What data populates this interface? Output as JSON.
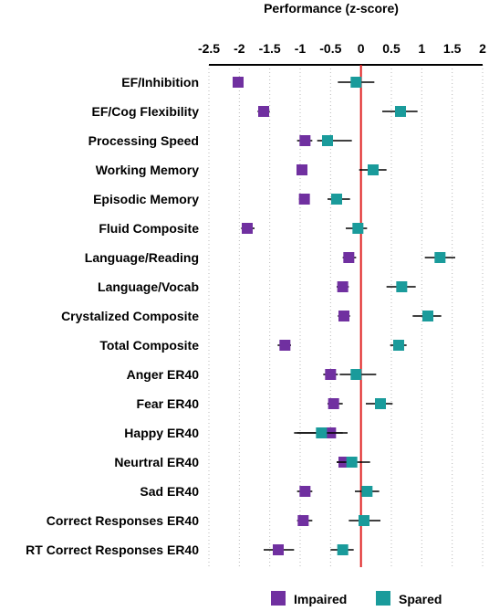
{
  "chart_data": {
    "type": "scatter",
    "title": "Performance (z-score)",
    "xlim": [
      -2.5,
      2
    ],
    "x_ticks": [
      "-2.5",
      "-2",
      "-1.5",
      "-1",
      "-0.5",
      "0",
      "0.5",
      "1",
      "1.5",
      "2"
    ],
    "grid": "vertical dotted",
    "reference_line_x": 0,
    "reference_line_color": "#e02020",
    "legend_position": "bottom-right",
    "categories": [
      "EF/Inhibition",
      "EF/Cog Flexibility",
      "Processing Speed",
      "Working Memory",
      "Episodic Memory",
      "Fluid Composite",
      "Language/Reading",
      "Language/Vocab",
      "Crystalized Composite",
      "Total Composite",
      "Anger ER40",
      "Fear ER40",
      "Happy ER40",
      "Neurtral ER40",
      "Sad ER40",
      "Correct Responses ER40",
      "RT Correct Responses ER40"
    ],
    "series": [
      {
        "name": "Impaired",
        "color": "#7030a0",
        "values": [
          -2.02,
          -1.6,
          -0.92,
          -0.97,
          -0.93,
          -1.87,
          -0.2,
          -0.3,
          -0.28,
          -1.25,
          -0.5,
          -0.45,
          -0.5,
          -0.28,
          -0.92,
          -0.95,
          -1.36
        ],
        "err_low": [
          -2.05,
          -1.7,
          -1.05,
          -1.05,
          -1.02,
          -1.97,
          -0.3,
          -0.4,
          -0.38,
          -1.37,
          -0.62,
          -0.55,
          -1.1,
          -0.4,
          -1.05,
          -1.05,
          -1.6
        ],
        "err_high": [
          -1.98,
          -1.5,
          -0.8,
          -0.88,
          -0.85,
          -1.75,
          -0.08,
          -0.2,
          -0.18,
          -1.15,
          -0.38,
          -0.3,
          -0.3,
          -0.15,
          -0.8,
          -0.8,
          -1.1
        ]
      },
      {
        "name": "Spared",
        "color": "#1a9b9b",
        "values": [
          -0.08,
          0.65,
          -0.55,
          0.2,
          -0.4,
          -0.05,
          1.3,
          0.67,
          1.1,
          0.62,
          -0.08,
          0.32,
          -0.65,
          -0.15,
          0.1,
          0.05,
          -0.3
        ],
        "err_low": [
          -0.38,
          0.35,
          -0.72,
          -0.03,
          -0.55,
          -0.25,
          1.05,
          0.42,
          0.85,
          0.48,
          -0.35,
          0.08,
          -1.05,
          -0.4,
          -0.1,
          -0.2,
          -0.5
        ],
        "err_high": [
          0.22,
          0.93,
          -0.15,
          0.42,
          -0.18,
          0.1,
          1.55,
          0.9,
          1.32,
          0.75,
          0.25,
          0.52,
          -0.22,
          0.15,
          0.3,
          0.32,
          -0.12
        ]
      }
    ]
  }
}
